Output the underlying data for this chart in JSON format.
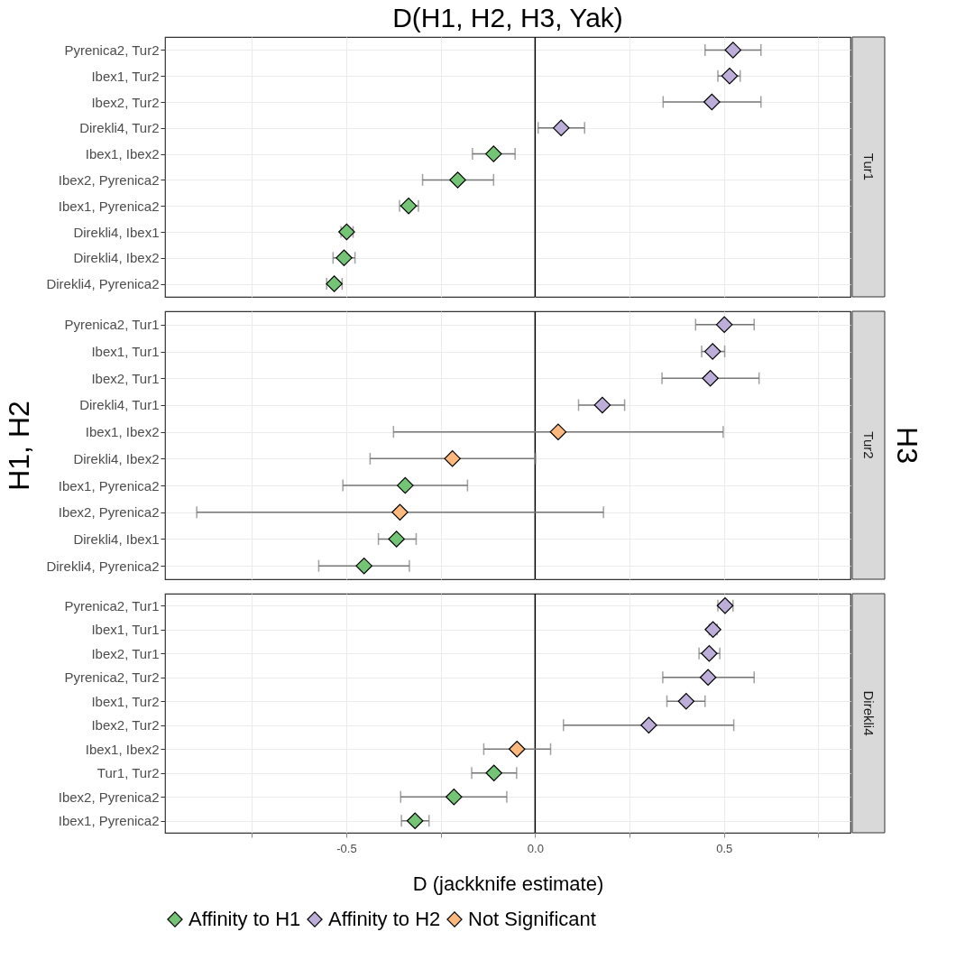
{
  "chart_data": [
    {
      "type": "scatter",
      "orientation": "horizontal",
      "title": "D(H1, H2, H3, Yak)",
      "y2label": "Tur1",
      "marker": "diamond",
      "grid": true,
      "tick_labels": "y",
      "categories": [
        "Pyrenica2, Tur2",
        "Ibex1, Tur2",
        "Ibex2, Tur2",
        "Direkli4, Tur2",
        "Ibex1, Ibex2",
        "Ibex2, Pyrenica2",
        "Ibex1, Pyrenica2",
        "Direkli4, Ibex1",
        "Direkli4, Ibex2",
        "Direkli4, Pyrenica2"
      ],
      "series": [
        {
          "color": "#74c476",
          "values": [
            null,
            null,
            null,
            null,
            -0.11,
            -0.205,
            -0.335,
            -0.499,
            -0.506,
            -0.532
          ],
          "errors": [
            null,
            null,
            null,
            null,
            [
              -0.166,
              -0.053
            ],
            [
              -0.298,
              -0.11
            ],
            [
              -0.359,
              -0.309
            ],
            [
              -0.514,
              -0.482
            ],
            [
              -0.535,
              -0.477
            ],
            [
              -0.552,
              -0.511
            ]
          ]
        },
        {
          "color": "#bcaed8",
          "values": [
            0.524,
            0.515,
            0.468,
            0.069,
            null,
            null,
            null,
            null,
            null,
            null
          ],
          "errors": [
            [
              0.45,
              0.598
            ],
            [
              0.484,
              0.543
            ],
            [
              0.339,
              0.598
            ],
            [
              0.008,
              0.131
            ],
            null,
            null,
            null,
            null,
            null,
            null
          ]
        }
      ],
      "xlim": [
        -0.98,
        0.835
      ],
      "xticks": [
        -0.75,
        -0.5,
        -0.25,
        0,
        0.25,
        0.5,
        0.75
      ],
      "ref_lines": [
        {
          "axis": "x",
          "value": 0,
          "color": "#000000"
        }
      ]
    },
    {
      "type": "scatter",
      "orientation": "horizontal",
      "ylabel": "H1, H2",
      "y2label": "Tur2",
      "annotations": [
        "H3"
      ],
      "marker": "diamond",
      "grid": true,
      "tick_labels": "y",
      "categories": [
        "Pyrenica2, Tur1",
        "Ibex1, Tur1",
        "Ibex2, Tur1",
        "Direkli4, Tur1",
        "Ibex1, Ibex2",
        "Direkli4, Ibex2",
        "Ibex1, Pyrenica2",
        "Ibex2, Pyrenica2",
        "Direkli4, Ibex1",
        "Direkli4, Pyrenica2"
      ],
      "series": [
        {
          "color": "#74c476",
          "values": [
            null,
            null,
            null,
            null,
            null,
            null,
            -0.344,
            null,
            -0.367,
            -0.453
          ],
          "errors": [
            null,
            null,
            null,
            null,
            null,
            null,
            [
              -0.509,
              -0.179
            ],
            null,
            [
              -0.415,
              -0.315
            ],
            [
              -0.573,
              -0.333
            ]
          ]
        },
        {
          "color": "#bcaed8",
          "values": [
            0.501,
            0.47,
            0.464,
            0.178,
            null,
            null,
            null,
            null,
            null,
            null
          ],
          "errors": [
            [
              0.425,
              0.58
            ],
            [
              0.441,
              0.502
            ],
            [
              0.336,
              0.593
            ],
            [
              0.115,
              0.237
            ],
            null,
            null,
            null,
            null,
            null,
            null
          ]
        },
        {
          "color": "#fdb97d",
          "values": [
            null,
            null,
            null,
            null,
            0.061,
            -0.219,
            null,
            -0.358,
            null,
            null
          ],
          "errors": [
            null,
            null,
            null,
            null,
            [
              -0.375,
              0.498
            ],
            [
              -0.437,
              0.001
            ],
            null,
            [
              -0.896,
              0.181
            ],
            null,
            null
          ]
        }
      ],
      "xlim": [
        -0.98,
        0.835
      ],
      "xticks": [
        -0.75,
        -0.5,
        -0.25,
        0,
        0.25,
        0.5,
        0.75
      ],
      "ref_lines": [
        {
          "axis": "x",
          "value": 0,
          "color": "#000000"
        }
      ]
    },
    {
      "type": "scatter",
      "orientation": "horizontal",
      "xlabel": "D (jackknife estimate)",
      "y2label": "Direkli4",
      "marker": "diamond",
      "grid": true,
      "legend": "bottom",
      "categories": [
        "Pyrenica2, Tur1",
        "Ibex1, Tur1",
        "Ibex2, Tur1",
        "Pyrenica2, Tur2",
        "Ibex1, Tur2",
        "Ibex2, Tur2",
        "Ibex1, Ibex2",
        "Tur1, Tur2",
        "Ibex2, Pyrenica2",
        "Ibex1, Pyrenica2"
      ],
      "series": [
        {
          "name": "Affinity to H1",
          "color": "#74c476",
          "values": [
            null,
            null,
            null,
            null,
            null,
            null,
            null,
            -0.109,
            -0.215,
            -0.318
          ],
          "errors": [
            null,
            null,
            null,
            null,
            null,
            null,
            null,
            [
              -0.168,
              -0.049
            ],
            [
              -0.356,
              -0.075
            ],
            [
              -0.354,
              -0.281
            ]
          ]
        },
        {
          "name": "Affinity to H2",
          "color": "#bcaed8",
          "values": [
            0.503,
            0.471,
            0.461,
            0.458,
            0.4,
            0.301,
            null,
            null,
            null,
            null
          ],
          "errors": [
            [
              0.484,
              0.524
            ],
            [
              0.461,
              0.482
            ],
            [
              0.434,
              0.489
            ],
            [
              0.338,
              0.58
            ],
            [
              0.349,
              0.45
            ],
            [
              0.075,
              0.526
            ],
            null,
            null,
            null,
            null
          ]
        },
        {
          "name": "Not Significant",
          "color": "#fdb97d",
          "values": [
            null,
            null,
            null,
            null,
            null,
            null,
            -0.048,
            null,
            null,
            null
          ],
          "errors": [
            null,
            null,
            null,
            null,
            null,
            null,
            [
              -0.136,
              0.041
            ],
            null,
            null,
            null
          ]
        }
      ],
      "xlim": [
        -0.98,
        0.835
      ],
      "xticks": [
        {
          "value": -0.75,
          "label": null
        },
        -0.5,
        {
          "value": -0.25,
          "label": null
        },
        {
          "value": 0,
          "label": "0.0"
        },
        {
          "value": 0.25,
          "label": null
        },
        0.5,
        {
          "value": 0.75,
          "label": null
        }
      ],
      "ref_lines": [
        {
          "axis": "x",
          "value": 0,
          "color": "#000000"
        }
      ]
    }
  ]
}
